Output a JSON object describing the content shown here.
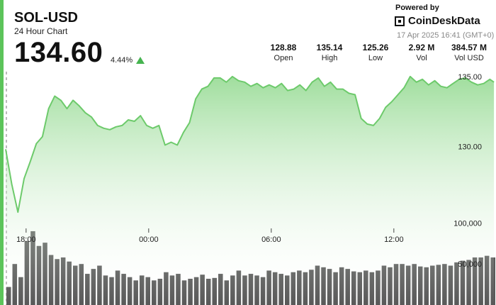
{
  "header": {
    "symbol": "SOL-USD",
    "subtitle": "24 Hour Chart",
    "price": "134.60",
    "change": "4.44%",
    "powered_by": "Powered by",
    "brand": "CoinDeskData",
    "timestamp": "17 Apr 2025 16:41 (GMT+0)"
  },
  "stats": [
    {
      "value": "128.88",
      "label": "Open"
    },
    {
      "value": "135.14",
      "label": "High"
    },
    {
      "value": "125.26",
      "label": "Low"
    },
    {
      "value": "2.92 M",
      "label": "Vol"
    },
    {
      "value": "384.57 M",
      "label": "Vol USD"
    }
  ],
  "colors": {
    "accent": "#5cc45a",
    "line": "#6dca6b",
    "area_top": "#8fd88c",
    "volume": "#595959",
    "up_arrow": "#46b450"
  },
  "chart_data": {
    "type": "area",
    "title": "SOL-USD",
    "subtitle": "24 Hour Chart",
    "x_tick_labels": [
      "18:00",
      "00:00",
      "06:00",
      "12:00"
    ],
    "x_tick_positions_hours": [
      1,
      7,
      13,
      19
    ],
    "price_ticks": [
      "135.00",
      "130.00"
    ],
    "price_tick_values": [
      135,
      130
    ],
    "price_ylim": [
      125.0,
      135.4
    ],
    "volume_ticks": [
      "100,000",
      "50,000"
    ],
    "volume_tick_values": [
      100000,
      50000
    ],
    "volume_ylim": [
      0,
      160000
    ],
    "grid": false,
    "price_series": {
      "name": "Price",
      "x_hours": [
        0.0,
        0.3,
        0.6,
        0.9,
        1.2,
        1.5,
        1.8,
        2.1,
        2.4,
        2.7,
        3.0,
        3.3,
        3.6,
        3.9,
        4.2,
        4.5,
        4.8,
        5.1,
        5.4,
        5.7,
        6.0,
        6.3,
        6.6,
        6.9,
        7.2,
        7.5,
        7.8,
        8.1,
        8.4,
        8.7,
        9.0,
        9.3,
        9.6,
        9.9,
        10.2,
        10.5,
        10.8,
        11.1,
        11.4,
        11.7,
        12.0,
        12.3,
        12.6,
        12.9,
        13.2,
        13.5,
        13.8,
        14.1,
        14.4,
        14.7,
        15.0,
        15.3,
        15.6,
        15.9,
        16.2,
        16.5,
        16.8,
        17.1,
        17.4,
        17.7,
        18.0,
        18.3,
        18.6,
        18.9,
        19.2,
        19.5,
        19.8,
        20.1,
        20.4,
        20.7,
        21.0,
        21.3,
        21.6,
        21.9,
        22.2,
        22.5,
        22.8,
        23.1,
        23.4,
        23.7,
        23.9
      ],
      "values": [
        129.8,
        127.3,
        125.3,
        127.7,
        128.9,
        130.2,
        130.7,
        132.7,
        133.6,
        133.3,
        132.7,
        133.3,
        132.9,
        132.4,
        132.1,
        131.5,
        131.3,
        131.2,
        131.4,
        131.5,
        131.9,
        131.8,
        132.2,
        131.5,
        131.3,
        131.5,
        130.1,
        130.3,
        130.1,
        131.0,
        131.7,
        133.4,
        134.1,
        134.3,
        134.9,
        134.9,
        134.6,
        135.0,
        134.7,
        134.6,
        134.3,
        134.5,
        134.2,
        134.4,
        134.2,
        134.5,
        134.0,
        134.1,
        134.4,
        134.0,
        134.6,
        134.9,
        134.3,
        134.6,
        134.1,
        134.1,
        133.8,
        133.7,
        132.0,
        131.6,
        131.5,
        132.0,
        132.8,
        133.2,
        133.7,
        134.2,
        135.0,
        134.6,
        134.8,
        134.4,
        134.7,
        134.3,
        134.2,
        134.5,
        134.8,
        134.9,
        134.6,
        134.4,
        134.5,
        134.8,
        134.6
      ]
    },
    "volume_series": {
      "name": "Volume",
      "values": [
        22000,
        50000,
        34000,
        78000,
        90000,
        72000,
        76000,
        61000,
        56000,
        58000,
        53000,
        48000,
        50000,
        38000,
        44000,
        48000,
        36000,
        34000,
        42000,
        38000,
        34000,
        30000,
        36000,
        34000,
        30000,
        32000,
        40000,
        36000,
        38000,
        30000,
        32000,
        34000,
        37000,
        32000,
        33000,
        38000,
        30000,
        36000,
        42000,
        36000,
        38000,
        36000,
        34000,
        42000,
        40000,
        38000,
        36000,
        40000,
        42000,
        40000,
        43000,
        48000,
        46000,
        44000,
        40000,
        46000,
        44000,
        41000,
        40000,
        42000,
        40000,
        42000,
        48000,
        46000,
        50000,
        50000,
        48000,
        50000,
        47000,
        46000,
        48000,
        49000,
        50000,
        48000,
        52000,
        54000,
        55000,
        58000,
        58000,
        60000,
        58000
      ]
    }
  }
}
